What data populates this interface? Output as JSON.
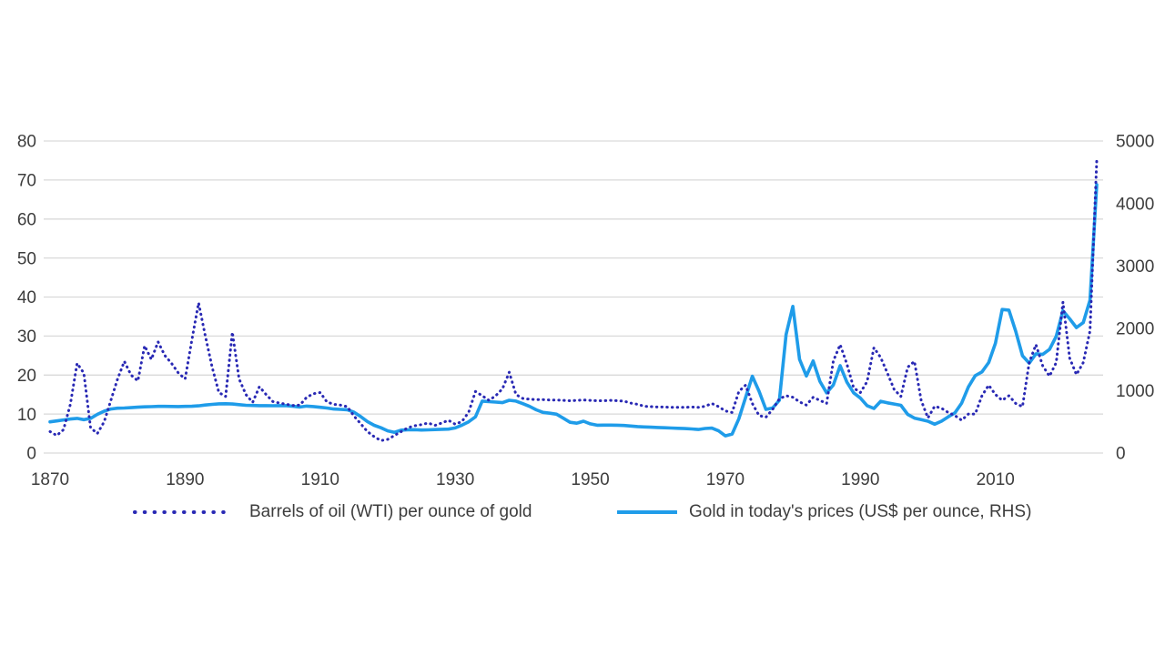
{
  "chart_data": {
    "type": "line",
    "title": "",
    "grid": true,
    "legend_position": "bottom",
    "background_color": "#ffffff",
    "grid_color": "#d9d9d9",
    "text_color": "#3d3d3d",
    "x_axis": {
      "range": [
        1870,
        2025
      ],
      "tick_years": [
        1870,
        1890,
        1910,
        1930,
        1950,
        1970,
        1990,
        2010
      ]
    },
    "left_axis": {
      "range": [
        0,
        80
      ],
      "ticks": [
        0,
        10,
        20,
        30,
        40,
        50,
        60,
        70,
        80
      ]
    },
    "right_axis": {
      "range": [
        0,
        5000
      ],
      "ticks": [
        0,
        1000,
        2000,
        3000,
        4000,
        5000
      ]
    },
    "years": [
      1870,
      1871,
      1872,
      1873,
      1874,
      1875,
      1876,
      1877,
      1878,
      1879,
      1880,
      1881,
      1882,
      1883,
      1884,
      1885,
      1886,
      1887,
      1888,
      1889,
      1890,
      1891,
      1892,
      1893,
      1894,
      1895,
      1896,
      1897,
      1898,
      1899,
      1900,
      1901,
      1902,
      1903,
      1904,
      1905,
      1906,
      1907,
      1908,
      1909,
      1910,
      1911,
      1912,
      1913,
      1914,
      1915,
      1916,
      1917,
      1918,
      1919,
      1920,
      1921,
      1922,
      1923,
      1924,
      1925,
      1926,
      1927,
      1928,
      1929,
      1930,
      1931,
      1932,
      1933,
      1934,
      1935,
      1936,
      1937,
      1938,
      1939,
      1940,
      1941,
      1942,
      1943,
      1944,
      1945,
      1946,
      1947,
      1948,
      1949,
      1950,
      1951,
      1952,
      1953,
      1954,
      1955,
      1956,
      1957,
      1958,
      1959,
      1960,
      1961,
      1962,
      1963,
      1964,
      1965,
      1966,
      1967,
      1968,
      1969,
      1970,
      1971,
      1972,
      1973,
      1974,
      1975,
      1976,
      1977,
      1978,
      1979,
      1980,
      1981,
      1982,
      1983,
      1984,
      1985,
      1986,
      1987,
      1988,
      1989,
      1990,
      1991,
      1992,
      1993,
      1994,
      1995,
      1996,
      1997,
      1998,
      1999,
      2000,
      2001,
      2002,
      2003,
      2004,
      2005,
      2006,
      2007,
      2008,
      2009,
      2010,
      2011,
      2012,
      2013,
      2014,
      2015,
      2016,
      2017,
      2018,
      2019,
      2020,
      2021,
      2022,
      2023,
      2024,
      2025
    ],
    "series": [
      {
        "name": "Barrels of oil (WTI) per ounce of gold",
        "axis": "left",
        "line_style": "dotted",
        "color": "#2929b4",
        "values": [
          5.5,
          4.5,
          6.0,
          12.5,
          23.0,
          20.5,
          6.5,
          5.0,
          8.0,
          13.5,
          19.0,
          23.5,
          20.0,
          18.5,
          27.5,
          24.0,
          28.5,
          25.0,
          23.0,
          20.5,
          19.0,
          29.0,
          38.5,
          30.0,
          22.0,
          15.5,
          14.5,
          31.0,
          19.0,
          15.0,
          13.0,
          17.0,
          15.0,
          13.2,
          12.8,
          12.5,
          12.2,
          12.3,
          14.3,
          15.2,
          15.5,
          13.1,
          12.5,
          12.3,
          11.9,
          9.5,
          7.5,
          5.5,
          4.2,
          3.2,
          3.5,
          4.5,
          5.5,
          6.5,
          7.0,
          7.3,
          7.7,
          7.1,
          7.7,
          8.4,
          7.4,
          8.1,
          10.5,
          15.8,
          14.7,
          13.5,
          14.7,
          16.5,
          20.7,
          15.0,
          14.0,
          13.8,
          13.7,
          13.7,
          13.6,
          13.6,
          13.5,
          13.4,
          13.5,
          13.6,
          13.5,
          13.4,
          13.4,
          13.5,
          13.4,
          13.3,
          12.8,
          12.5,
          12.0,
          11.9,
          11.8,
          11.8,
          11.7,
          11.7,
          11.7,
          11.8,
          11.7,
          12.0,
          12.7,
          11.9,
          10.8,
          10.4,
          15.8,
          17.4,
          12.7,
          9.6,
          9.2,
          11.2,
          13.9,
          14.7,
          14.3,
          13.1,
          12.3,
          14.3,
          13.5,
          12.7,
          23.6,
          27.8,
          22.8,
          16.7,
          15.5,
          18.3,
          27.0,
          24.5,
          20.5,
          16.3,
          14.5,
          22.0,
          23.5,
          13.5,
          9.0,
          12.0,
          11.5,
          10.4,
          9.6,
          8.4,
          10.0,
          10.0,
          14.7,
          17.4,
          15.0,
          13.5,
          14.7,
          12.7,
          11.9,
          23.2,
          27.8,
          22.4,
          19.7,
          23.2,
          38.7,
          24.3,
          20.1,
          23.2,
          31.3,
          75.0
        ]
      },
      {
        "name": "Gold in today's prices (US$ per ounce, RHS)",
        "axis": "right",
        "line_style": "solid",
        "color": "#1f9ce9",
        "values": [
          500,
          515,
          530,
          545,
          555,
          535,
          555,
          620,
          670,
          705,
          718,
          722,
          728,
          734,
          740,
          744,
          748,
          748,
          746,
          745,
          748,
          750,
          756,
          770,
          780,
          788,
          790,
          786,
          776,
          766,
          762,
          760,
          760,
          758,
          760,
          760,
          750,
          738,
          752,
          745,
          733,
          722,
          706,
          700,
          694,
          655,
          585,
          505,
          445,
          405,
          355,
          332,
          368,
          372,
          375,
          369,
          372,
          376,
          380,
          384,
          402,
          447,
          502,
          580,
          832,
          824,
          816,
          808,
          846,
          833,
          792,
          748,
          692,
          652,
          638,
          622,
          558,
          492,
          478,
          510,
          468,
          446,
          447,
          448,
          446,
          441,
          433,
          424,
          419,
          414,
          409,
          405,
          401,
          397,
          392,
          387,
          377,
          393,
          399,
          356,
          275,
          305,
          550,
          890,
          1230,
          990,
          700,
          722,
          845,
          1900,
          2350,
          1500,
          1235,
          1475,
          1150,
          965,
          1090,
          1400,
          1135,
          965,
          880,
          760,
          715,
          830,
          805,
          785,
          765,
          620,
          560,
          535,
          510,
          462,
          510,
          580,
          645,
          800,
          1060,
          1240,
          1300,
          1450,
          1760,
          2300,
          2290,
          1950,
          1560,
          1440,
          1590,
          1580,
          1660,
          1870,
          2280,
          2150,
          2010,
          2090,
          2450,
          4300
        ]
      }
    ]
  }
}
